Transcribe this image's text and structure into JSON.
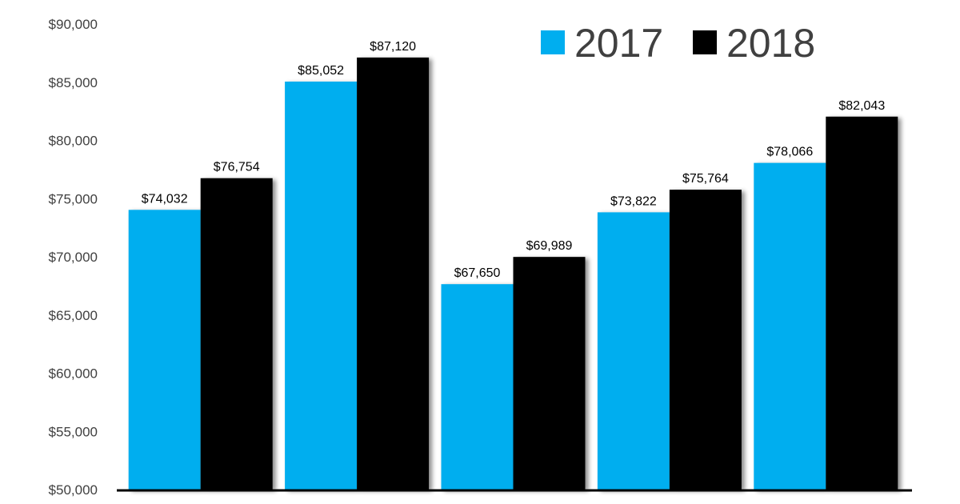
{
  "chart_data": {
    "type": "bar",
    "categories": [
      "",
      "",
      "",
      "",
      ""
    ],
    "series": [
      {
        "name": "2017",
        "color": "#00AEEF",
        "values": [
          74032,
          85052,
          67650,
          73822,
          78066
        ],
        "labels": [
          "$74,032",
          "$85,052",
          "$67,650",
          "$73,822",
          "$78,066"
        ]
      },
      {
        "name": "2018",
        "color": "#000000",
        "values": [
          76754,
          87120,
          69989,
          75764,
          82043
        ],
        "labels": [
          "$76,754",
          "$87,120",
          "$69,989",
          "$75,764",
          "$82,043"
        ]
      }
    ],
    "ylim": [
      50000,
      90000
    ],
    "yticks": [
      50000,
      55000,
      60000,
      65000,
      70000,
      75000,
      80000,
      85000,
      90000
    ],
    "ytick_labels": [
      "$50,000",
      "$55,000",
      "$60,000",
      "$65,000",
      "$70,000",
      "$75,000",
      "$80,000",
      "$85,000",
      "$90,000"
    ],
    "title": "",
    "xlabel": "",
    "ylabel": "",
    "grid": false,
    "legend_position": "top-right"
  }
}
